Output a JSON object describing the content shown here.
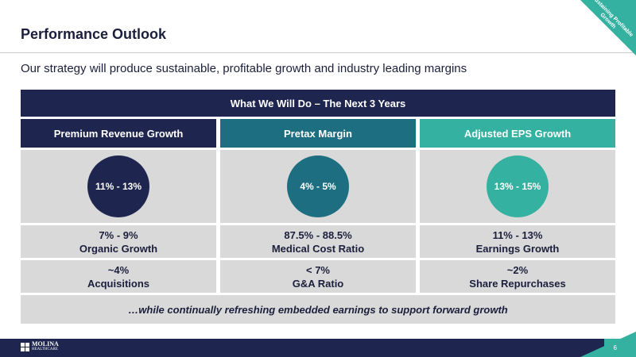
{
  "slide": {
    "title": "Performance Outlook",
    "subtitle": "Our strategy will produce sustainable, profitable growth and industry leading margins",
    "corner_badge": "Sustaining Profitable Growth",
    "page_number": "6"
  },
  "table": {
    "header": "What We Will Do – The Next 3 Years",
    "columns": [
      {
        "heading": "Premium Revenue Growth",
        "target": "11%  - 13%",
        "metrics": [
          {
            "value": "7%  - 9%",
            "label": "Organic Growth"
          },
          {
            "value": "~4%",
            "label": "Acquisitions"
          }
        ]
      },
      {
        "heading": "Pretax Margin",
        "target": "4%  - 5%",
        "metrics": [
          {
            "value": "87.5%  - 88.5%",
            "label": "Medical Cost Ratio"
          },
          {
            "value": "< 7%",
            "label": "G&A Ratio"
          }
        ]
      },
      {
        "heading": "Adjusted EPS Growth",
        "target": "13%  - 15%",
        "metrics": [
          {
            "value": "11%  - 13%",
            "label": "Earnings Growth"
          },
          {
            "value": "~2%",
            "label": "Share Repurchases"
          }
        ]
      }
    ],
    "footer": "…while continually refreshing embedded earnings to support forward growth"
  },
  "logo": {
    "name": "MOLINA",
    "sub": "HEALTHCARE"
  },
  "colors": {
    "navy": "#1e2650",
    "teal": "#1d6e80",
    "green": "#34b1a0",
    "gray": "#d9d9d9"
  }
}
